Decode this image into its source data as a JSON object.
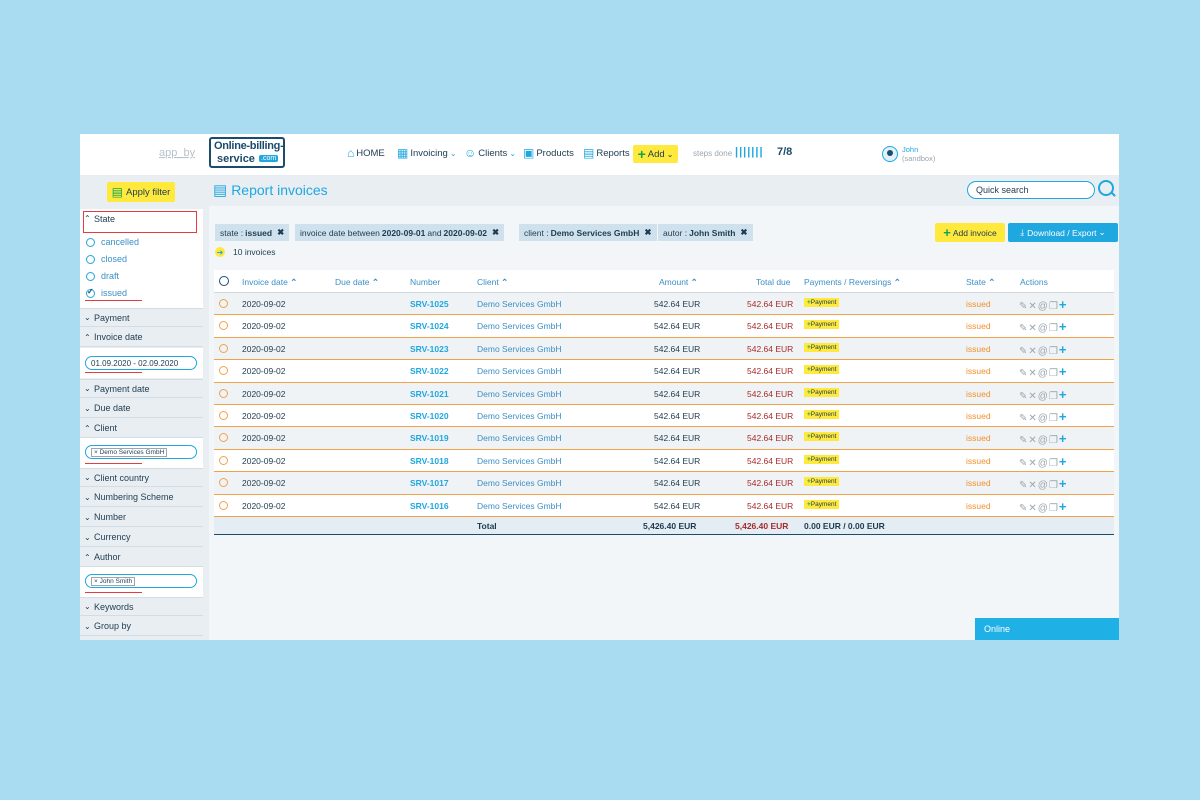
{
  "header": {
    "app_by": "app_by",
    "logo_line1": "Online-billing-",
    "logo_line2": "service",
    "logo_line3": ".com",
    "nav": {
      "home": "HOME",
      "invoicing": "Invoicing",
      "clients": "Clients",
      "products": "Products",
      "reports": "Reports",
      "add": "Add"
    },
    "steps_label": "steps done",
    "steps_bars": "|||||||",
    "steps_value": "7/8",
    "user_name": "John",
    "user_env": "(sandbox)"
  },
  "sidebar": {
    "apply_filter": "Apply filter",
    "state_label": "State",
    "state_options": [
      "cancelled",
      "closed",
      "draft",
      "issued"
    ],
    "state_selected": "issued",
    "payment": "Payment",
    "invoice_date": "Invoice date",
    "invoice_date_value": "01.09.2020 - 02.09.2020",
    "payment_date": "Payment date",
    "due_date": "Due date",
    "client": "Client",
    "client_chip": "Demo Services GmbH",
    "client_country": "Client country",
    "numbering_scheme": "Numbering Scheme",
    "number": "Number",
    "currency": "Currency",
    "author": "Author",
    "author_chip": "John Smith",
    "keywords": "Keywords",
    "group_by": "Group by"
  },
  "main": {
    "title": "Report invoices",
    "quick_search": "Quick search",
    "filters": [
      {
        "key": "state :",
        "value": "issued"
      },
      {
        "key": "invoice date between",
        "value": "2020-09-01",
        "mid": "and",
        "value2": "2020-09-02"
      },
      {
        "key": "client :",
        "value": "Demo Services GmbH"
      },
      {
        "key": "autor :",
        "value": "John Smith"
      }
    ],
    "count": "10 invoices",
    "add_invoice": "Add invoice",
    "download_export": "Download / Export"
  },
  "table": {
    "columns": {
      "invoice_date": "Invoice date",
      "due_date": "Due date",
      "number": "Number",
      "client": "Client",
      "amount": "Amount",
      "total_due": "Total due",
      "payments": "Payments / Reversings",
      "state": "State",
      "actions": "Actions"
    },
    "rows": [
      {
        "date": "2020-09-02",
        "number": "SRV-1025",
        "client": "Demo Services GmbH",
        "amount": "542.64 EUR",
        "total_due": "542.64 EUR",
        "payment": "Payment",
        "state": "issued"
      },
      {
        "date": "2020-09-02",
        "number": "SRV-1024",
        "client": "Demo Services GmbH",
        "amount": "542.64 EUR",
        "total_due": "542.64 EUR",
        "payment": "Payment",
        "state": "issued"
      },
      {
        "date": "2020-09-02",
        "number": "SRV-1023",
        "client": "Demo Services GmbH",
        "amount": "542.64 EUR",
        "total_due": "542.64 EUR",
        "payment": "Payment",
        "state": "issued"
      },
      {
        "date": "2020-09-02",
        "number": "SRV-1022",
        "client": "Demo Services GmbH",
        "amount": "542.64 EUR",
        "total_due": "542.64 EUR",
        "payment": "Payment",
        "state": "issued"
      },
      {
        "date": "2020-09-02",
        "number": "SRV-1021",
        "client": "Demo Services GmbH",
        "amount": "542.64 EUR",
        "total_due": "542.64 EUR",
        "payment": "Payment",
        "state": "issued"
      },
      {
        "date": "2020-09-02",
        "number": "SRV-1020",
        "client": "Demo Services GmbH",
        "amount": "542.64 EUR",
        "total_due": "542.64 EUR",
        "payment": "Payment",
        "state": "issued"
      },
      {
        "date": "2020-09-02",
        "number": "SRV-1019",
        "client": "Demo Services GmbH",
        "amount": "542.64 EUR",
        "total_due": "542.64 EUR",
        "payment": "Payment",
        "state": "issued"
      },
      {
        "date": "2020-09-02",
        "number": "SRV-1018",
        "client": "Demo Services GmbH",
        "amount": "542.64 EUR",
        "total_due": "542.64 EUR",
        "payment": "Payment",
        "state": "issued"
      },
      {
        "date": "2020-09-02",
        "number": "SRV-1017",
        "client": "Demo Services GmbH",
        "amount": "542.64 EUR",
        "total_due": "542.64 EUR",
        "payment": "Payment",
        "state": "issued"
      },
      {
        "date": "2020-09-02",
        "number": "SRV-1016",
        "client": "Demo Services GmbH",
        "amount": "542.64 EUR",
        "total_due": "542.64 EUR",
        "payment": "Payment",
        "state": "issued"
      }
    ],
    "total_label": "Total",
    "total_amount": "5,426.40 EUR",
    "total_due": "5,426.40 EUR",
    "total_payments": "0.00 EUR / 0.00 EUR"
  },
  "online_label": "Online",
  "colors": {
    "accent": "#1fa7e0",
    "brand_dark": "#1b4c6b",
    "highlight": "#ffe93d",
    "state_issued": "#f0902a",
    "total_due": "#a62b2b"
  },
  "icons": [
    "home-icon",
    "invoicing-icon",
    "clients-icon",
    "products-icon",
    "reports-icon",
    "plus-icon",
    "avatar-icon",
    "filter-icon",
    "report-icon",
    "search-icon",
    "arrow-right-icon",
    "download-icon",
    "edit-icon",
    "cancel-icon",
    "email-icon",
    "copy-icon"
  ]
}
